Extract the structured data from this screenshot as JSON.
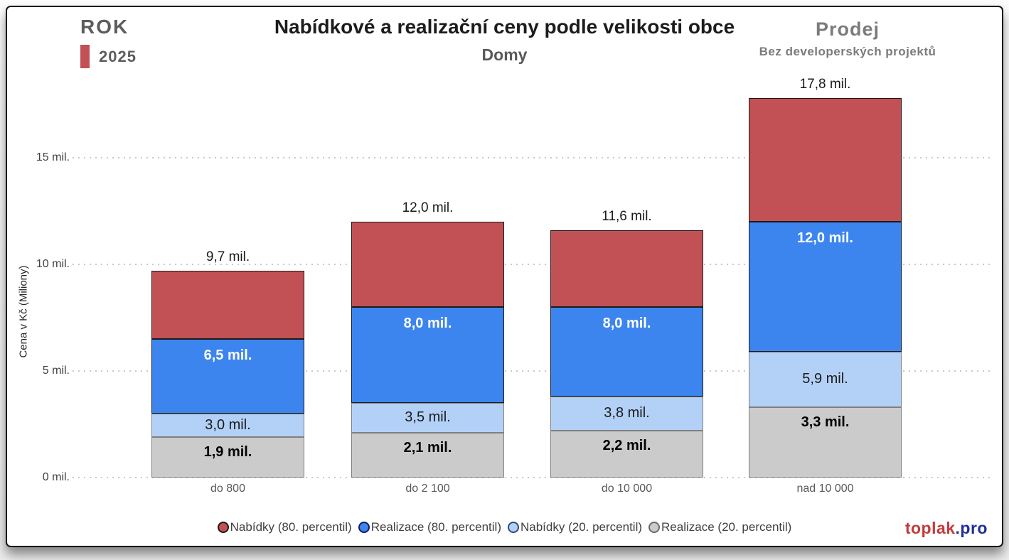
{
  "header": {
    "year_label": "ROK",
    "year_value": "2025",
    "year_swatch_color": "#c25156",
    "title": "Nabídkové a realizační ceny podle velikosti obce",
    "subtitle": "Domy",
    "right_title": "Prodej",
    "right_subtitle": "Bez developerských projektů"
  },
  "chart_data": {
    "type": "bar",
    "subtype": "stacked-percentile-bands (values are cumulative tops; each band spans from previous series value up to its own value)",
    "title": "Nabídkové a realizační ceny podle velikosti obce",
    "subtitle": "Domy",
    "xlabel": "",
    "ylabel": "Cena v Kč (Miliony)",
    "ylim": [
      0,
      18.5
    ],
    "grid": "dotted horizontal gridlines behind bars",
    "legend_position": "bottom-center",
    "yticks": [
      {
        "value": 0,
        "label": "0 mil."
      },
      {
        "value": 5,
        "label": "5 mil."
      },
      {
        "value": 10,
        "label": "10 mil."
      },
      {
        "value": 15,
        "label": "15 mil."
      }
    ],
    "categories": [
      "do 800",
      "do 2 100",
      "do 10 000",
      "nad 10 000"
    ],
    "series": [
      {
        "key": "nabidky80",
        "name": "Nabídky (80. percentil)",
        "color": "#c25156",
        "border": "#1a1a1a",
        "ring": "#1a1a1a",
        "values": [
          9.7,
          12.0,
          11.6,
          17.8
        ],
        "labels": [
          "9,7 mil.",
          "12,0 mil.",
          "11,6 mil.",
          "17,8 mil."
        ],
        "label_style": "total-above"
      },
      {
        "key": "realizace80",
        "name": "Realizace (80. percentil)",
        "color": "#3c85ee",
        "border": "#1a1a1a",
        "ring": "#101d66",
        "values": [
          6.5,
          8.0,
          8.0,
          12.0
        ],
        "labels": [
          "6,5 mil.",
          "8,0 mil.",
          "8,0 mil.",
          "12,0 mil."
        ],
        "label_style": "inside-white-bold"
      },
      {
        "key": "nabidky20",
        "name": "Nabídky (20. percentil)",
        "color": "#b3d1f6",
        "border": "#808080",
        "ring": "#2f4a7d",
        "values": [
          3.0,
          3.5,
          3.8,
          5.9
        ],
        "labels": [
          "3,0 mil.",
          "3,5 mil.",
          "3,8 mil.",
          "5,9 mil."
        ],
        "label_style": "inside-dark"
      },
      {
        "key": "realizace20",
        "name": "Realizace (20. percentil)",
        "color": "#cbcbcb",
        "border": "#808080",
        "ring": "#6b6b6b",
        "values": [
          1.9,
          2.1,
          2.2,
          3.3
        ],
        "labels": [
          "1,9 mil.",
          "2,1 mil.",
          "2,2 mil.",
          "3,3 mil."
        ],
        "label_style": "inside-black-bold"
      }
    ]
  },
  "footer": {
    "brand_primary": "toplak",
    "brand_secondary": ".pro",
    "brand_primary_color": "#c23b3b",
    "brand_secondary_color": "#1f2f9c"
  }
}
